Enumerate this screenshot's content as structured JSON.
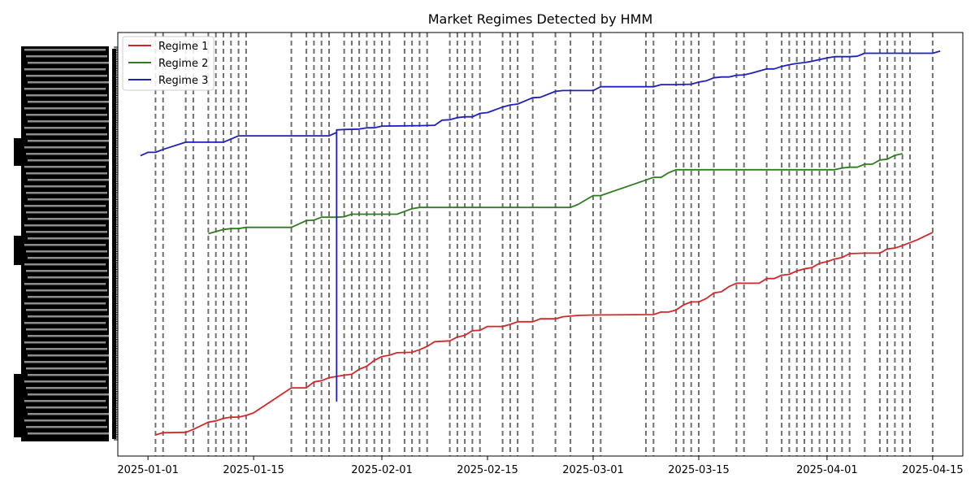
{
  "chart_data": {
    "type": "line",
    "title": "Market Regimes Detected by HMM",
    "xlabel": "",
    "ylabel": "",
    "x_tick_labels": [
      "2025-01-01",
      "2025-01-15",
      "2025-02-01",
      "2025-02-15",
      "2025-03-01",
      "2025-03-15",
      "2025-04-01",
      "2025-04-15"
    ],
    "x_range": [
      "2024-12-28",
      "2025-04-19"
    ],
    "y_range": [
      0,
      100
    ],
    "y_ticks_unreadable": true,
    "legend_position": "upper-left",
    "grid": false,
    "change_point_dates": [
      "2025-01-02",
      "2025-01-03",
      "2025-01-06",
      "2025-01-07",
      "2025-01-09",
      "2025-01-10",
      "2025-01-11",
      "2025-01-12",
      "2025-01-13",
      "2025-01-14",
      "2025-01-20",
      "2025-01-22",
      "2025-01-23",
      "2025-01-24",
      "2025-01-25",
      "2025-01-27",
      "2025-01-28",
      "2025-01-29",
      "2025-01-30",
      "2025-01-31",
      "2025-02-01",
      "2025-02-02",
      "2025-02-04",
      "2025-02-05",
      "2025-02-06",
      "2025-02-07",
      "2025-02-10",
      "2025-02-11",
      "2025-02-12",
      "2025-02-13",
      "2025-02-14",
      "2025-02-17",
      "2025-02-18",
      "2025-02-19",
      "2025-02-21",
      "2025-02-24",
      "2025-02-26",
      "2025-03-01",
      "2025-03-02",
      "2025-03-08",
      "2025-03-09",
      "2025-03-12",
      "2025-03-13",
      "2025-03-14",
      "2025-03-15",
      "2025-03-17",
      "2025-03-20",
      "2025-03-21",
      "2025-03-24",
      "2025-03-26",
      "2025-03-27",
      "2025-03-28",
      "2025-03-29",
      "2025-03-30",
      "2025-03-31",
      "2025-04-01",
      "2025-04-02",
      "2025-04-03",
      "2025-04-04",
      "2025-04-06",
      "2025-04-08",
      "2025-04-09",
      "2025-04-10",
      "2025-04-11",
      "2025-04-12",
      "2025-04-15"
    ],
    "series": [
      {
        "name": "Regime 1",
        "color": "#d62728",
        "points": [
          [
            "2025-01-02",
            5.0
          ],
          [
            "2025-01-03",
            5.5
          ],
          [
            "2025-01-06",
            5.6
          ],
          [
            "2025-01-07",
            6.3
          ],
          [
            "2025-01-09",
            8.0
          ],
          [
            "2025-01-10",
            8.3
          ],
          [
            "2025-01-11",
            8.9
          ],
          [
            "2025-01-12",
            9.2
          ],
          [
            "2025-01-13",
            9.2
          ],
          [
            "2025-01-14",
            9.6
          ],
          [
            "2025-01-15",
            10.2
          ],
          [
            "2025-01-20",
            16.1
          ],
          [
            "2025-01-22",
            16.1
          ],
          [
            "2025-01-23",
            17.5
          ],
          [
            "2025-01-24",
            17.8
          ],
          [
            "2025-01-25",
            18.5
          ],
          [
            "2025-01-27",
            19.1
          ],
          [
            "2025-01-28",
            19.3
          ],
          [
            "2025-01-29",
            20.5
          ],
          [
            "2025-01-30",
            21.2
          ],
          [
            "2025-01-31",
            22.6
          ],
          [
            "2025-02-01",
            23.5
          ],
          [
            "2025-02-02",
            23.8
          ],
          [
            "2025-02-03",
            24.4
          ],
          [
            "2025-02-05",
            24.5
          ],
          [
            "2025-02-06",
            25.1
          ],
          [
            "2025-02-07",
            25.9
          ],
          [
            "2025-02-08",
            27.0
          ],
          [
            "2025-02-10",
            27.2
          ],
          [
            "2025-02-11",
            28.1
          ],
          [
            "2025-02-12",
            28.5
          ],
          [
            "2025-02-13",
            29.6
          ],
          [
            "2025-02-14",
            29.7
          ],
          [
            "2025-02-15",
            30.6
          ],
          [
            "2025-02-17",
            30.6
          ],
          [
            "2025-02-18",
            31.1
          ],
          [
            "2025-02-19",
            31.7
          ],
          [
            "2025-02-21",
            31.7
          ],
          [
            "2025-02-22",
            32.4
          ],
          [
            "2025-02-24",
            32.4
          ],
          [
            "2025-02-25",
            32.9
          ],
          [
            "2025-02-27",
            33.2
          ],
          [
            "2025-03-01",
            33.3
          ],
          [
            "2025-03-09",
            33.4
          ],
          [
            "2025-03-10",
            34.0
          ],
          [
            "2025-03-11",
            34.0
          ],
          [
            "2025-03-12",
            34.5
          ],
          [
            "2025-03-13",
            35.7
          ],
          [
            "2025-03-14",
            36.4
          ],
          [
            "2025-03-15",
            36.4
          ],
          [
            "2025-03-16",
            37.2
          ],
          [
            "2025-03-17",
            38.5
          ],
          [
            "2025-03-18",
            38.8
          ],
          [
            "2025-03-19",
            40.0
          ],
          [
            "2025-03-20",
            40.8
          ],
          [
            "2025-03-21",
            40.8
          ],
          [
            "2025-03-23",
            40.8
          ],
          [
            "2025-03-24",
            41.9
          ],
          [
            "2025-03-25",
            41.9
          ],
          [
            "2025-03-26",
            42.7
          ],
          [
            "2025-03-27",
            42.9
          ],
          [
            "2025-03-28",
            43.7
          ],
          [
            "2025-03-29",
            44.2
          ],
          [
            "2025-03-30",
            44.5
          ],
          [
            "2025-03-31",
            45.5
          ],
          [
            "2025-04-01",
            45.9
          ],
          [
            "2025-04-02",
            46.5
          ],
          [
            "2025-04-03",
            46.9
          ],
          [
            "2025-04-04",
            47.8
          ],
          [
            "2025-04-06",
            47.9
          ],
          [
            "2025-04-08",
            47.9
          ],
          [
            "2025-04-09",
            48.9
          ],
          [
            "2025-04-10",
            49.1
          ],
          [
            "2025-04-11",
            49.7
          ],
          [
            "2025-04-12",
            50.4
          ],
          [
            "2025-04-13",
            51.1
          ],
          [
            "2025-04-15",
            52.8
          ]
        ]
      },
      {
        "name": "Regime 2",
        "color": "#2e7d1f",
        "points": [
          [
            "2025-01-09",
            52.5
          ],
          [
            "2025-01-10",
            53.0
          ],
          [
            "2025-01-11",
            53.5
          ],
          [
            "2025-01-12",
            53.7
          ],
          [
            "2025-01-13",
            53.7
          ],
          [
            "2025-01-14",
            54.0
          ],
          [
            "2025-01-20",
            54.0
          ],
          [
            "2025-01-22",
            55.6
          ],
          [
            "2025-01-23",
            55.7
          ],
          [
            "2025-01-24",
            56.4
          ],
          [
            "2025-01-26",
            56.4
          ],
          [
            "2025-01-27",
            56.5
          ],
          [
            "2025-01-28",
            57.1
          ],
          [
            "2025-02-03",
            57.1
          ],
          [
            "2025-02-05",
            58.4
          ],
          [
            "2025-02-06",
            58.7
          ],
          [
            "2025-02-26",
            58.7
          ],
          [
            "2025-02-27",
            59.4
          ],
          [
            "2025-03-01",
            61.5
          ],
          [
            "2025-03-02",
            61.5
          ],
          [
            "2025-03-09",
            65.8
          ],
          [
            "2025-03-10",
            65.8
          ],
          [
            "2025-03-11",
            66.9
          ],
          [
            "2025-03-12",
            67.6
          ],
          [
            "2025-04-01",
            67.6
          ],
          [
            "2025-04-02",
            67.6
          ],
          [
            "2025-04-03",
            68.0
          ],
          [
            "2025-04-04",
            68.2
          ],
          [
            "2025-04-05",
            68.2
          ],
          [
            "2025-04-06",
            68.9
          ],
          [
            "2025-04-07",
            68.9
          ],
          [
            "2025-04-08",
            69.9
          ],
          [
            "2025-04-09",
            70.1
          ],
          [
            "2025-04-10",
            71.0
          ],
          [
            "2025-04-11",
            71.4
          ]
        ]
      },
      {
        "name": "Regime 3",
        "color": "#1f1fbf",
        "points": [
          [
            "2024-12-31",
            70.9
          ],
          [
            "2025-01-01",
            71.7
          ],
          [
            "2025-01-02",
            71.7
          ],
          [
            "2025-01-03",
            72.4
          ],
          [
            "2025-01-06",
            74.1
          ],
          [
            "2025-01-07",
            74.1
          ],
          [
            "2025-01-10",
            74.1
          ],
          [
            "2025-01-11",
            74.1
          ],
          [
            "2025-01-13",
            75.6
          ],
          [
            "2025-01-14",
            75.6
          ],
          [
            "2025-01-25",
            75.6
          ],
          [
            "2025-01-26",
            76.4
          ],
          [
            "2025-01-26",
            13.0
          ],
          [
            "2025-01-26",
            77.0
          ],
          [
            "2025-01-27",
            77.1
          ],
          [
            "2025-01-29",
            77.2
          ],
          [
            "2025-01-30",
            77.5
          ],
          [
            "2025-01-31",
            77.5
          ],
          [
            "2025-02-01",
            77.9
          ],
          [
            "2025-02-06",
            78.0
          ],
          [
            "2025-02-08",
            78.1
          ],
          [
            "2025-02-09",
            79.3
          ],
          [
            "2025-02-10",
            79.4
          ],
          [
            "2025-02-11",
            79.9
          ],
          [
            "2025-02-12",
            80.1
          ],
          [
            "2025-02-13",
            80.1
          ],
          [
            "2025-02-14",
            80.9
          ],
          [
            "2025-02-15",
            81.1
          ],
          [
            "2025-02-17",
            82.4
          ],
          [
            "2025-02-18",
            82.9
          ],
          [
            "2025-02-19",
            83.1
          ],
          [
            "2025-02-21",
            84.6
          ],
          [
            "2025-02-22",
            84.7
          ],
          [
            "2025-02-24",
            86.1
          ],
          [
            "2025-02-25",
            86.3
          ],
          [
            "2025-02-27",
            86.3
          ],
          [
            "2025-03-01",
            86.3
          ],
          [
            "2025-03-02",
            87.2
          ],
          [
            "2025-03-08",
            87.2
          ],
          [
            "2025-03-09",
            87.2
          ],
          [
            "2025-03-10",
            87.7
          ],
          [
            "2025-03-12",
            87.7
          ],
          [
            "2025-03-14",
            87.8
          ],
          [
            "2025-03-15",
            88.3
          ],
          [
            "2025-03-16",
            88.6
          ],
          [
            "2025-03-17",
            89.3
          ],
          [
            "2025-03-18",
            89.5
          ],
          [
            "2025-03-19",
            89.5
          ],
          [
            "2025-03-20",
            89.9
          ],
          [
            "2025-03-21",
            90.0
          ],
          [
            "2025-03-22",
            90.4
          ],
          [
            "2025-03-24",
            91.4
          ],
          [
            "2025-03-25",
            91.4
          ],
          [
            "2025-03-26",
            92.0
          ],
          [
            "2025-03-27",
            92.4
          ],
          [
            "2025-03-28",
            92.7
          ],
          [
            "2025-03-29",
            92.9
          ],
          [
            "2025-03-30",
            93.2
          ],
          [
            "2025-03-31",
            93.6
          ],
          [
            "2025-04-01",
            94.0
          ],
          [
            "2025-04-02",
            94.3
          ],
          [
            "2025-04-03",
            94.3
          ],
          [
            "2025-04-04",
            94.3
          ],
          [
            "2025-04-05",
            94.4
          ],
          [
            "2025-04-06",
            95.1
          ],
          [
            "2025-04-07",
            95.1
          ],
          [
            "2025-04-15",
            95.1
          ],
          [
            "2025-04-16",
            95.6
          ]
        ]
      }
    ]
  }
}
